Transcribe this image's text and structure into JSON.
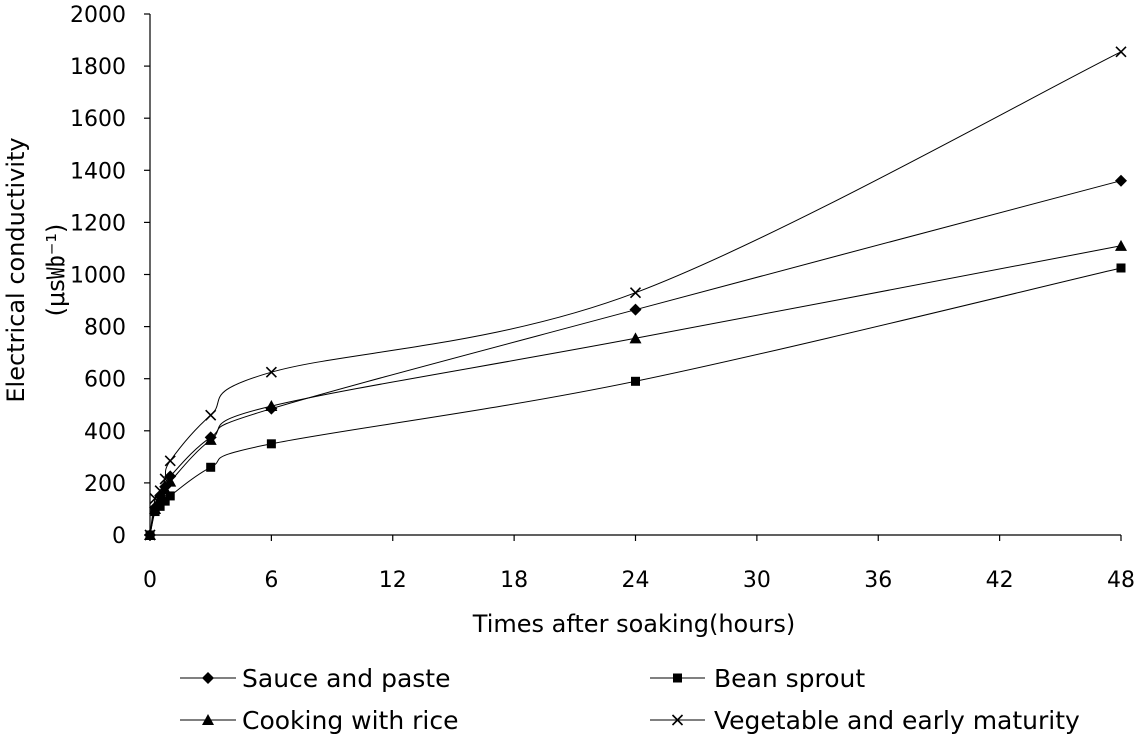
{
  "chart_data": {
    "type": "line",
    "title": "",
    "xlabel": "Times after soaking(hours)",
    "ylabel": "Electrical conductivity",
    "ylabel_unit": "(μs㏝⁻¹)",
    "xlim": [
      0,
      48
    ],
    "ylim": [
      0,
      2000
    ],
    "x_ticks": [
      0,
      6,
      12,
      18,
      24,
      30,
      36,
      42,
      48
    ],
    "y_ticks": [
      0,
      200,
      400,
      600,
      800,
      1000,
      1200,
      1400,
      1600,
      1800,
      2000
    ],
    "grid": false,
    "legend_position": "bottom",
    "x": [
      0,
      0.25,
      0.5,
      0.75,
      1,
      3,
      6,
      24,
      48
    ],
    "series": [
      {
        "name": "Sauce and paste",
        "marker": "diamond",
        "values": [
          0,
          105,
          150,
          185,
          225,
          375,
          485,
          865,
          1360
        ]
      },
      {
        "name": "Bean sprout",
        "marker": "square",
        "values": [
          0,
          90,
          110,
          130,
          150,
          260,
          350,
          590,
          1025
        ]
      },
      {
        "name": "Cooking with rice",
        "marker": "triangle",
        "values": [
          0,
          100,
          140,
          175,
          205,
          365,
          495,
          755,
          1110
        ]
      },
      {
        "name": "Vegetable and early maturity",
        "marker": "cross",
        "values": [
          0,
          140,
          170,
          215,
          285,
          460,
          625,
          930,
          1855
        ]
      }
    ]
  }
}
